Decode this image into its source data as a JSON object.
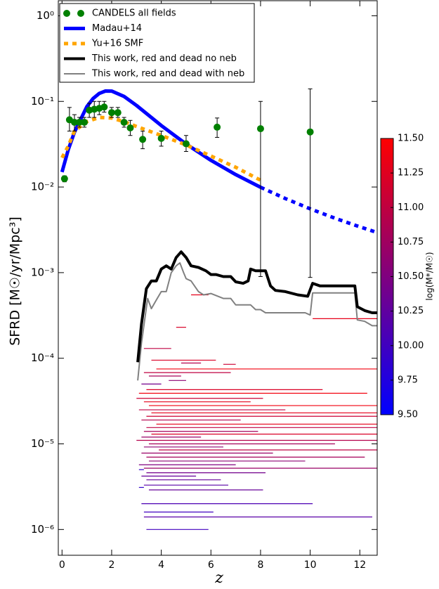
{
  "chart_data": {
    "type": "line",
    "x_label": "z",
    "y_label": "SFRD [M☉/yr/Mpc³]",
    "xlim": [
      -0.15,
      12.7
    ],
    "xticks": [
      0,
      2,
      4,
      6,
      8,
      10,
      12
    ],
    "ylim": [
      5e-07,
      1.5
    ],
    "y_scale": "log",
    "yticks": [
      {
        "value": 1,
        "label": "10⁰"
      },
      {
        "value": 0.1,
        "label": "10⁻¹"
      },
      {
        "value": 0.01,
        "label": "10⁻²"
      },
      {
        "value": 0.001,
        "label": "10⁻³"
      },
      {
        "value": 0.0001,
        "label": "10⁻⁴"
      },
      {
        "value": 1e-05,
        "label": "10⁻⁵"
      },
      {
        "value": 1e-06,
        "label": "10⁻⁶"
      }
    ],
    "legend": "upper left",
    "series": [
      {
        "name": "CANDELS all fields",
        "type": "scatter",
        "color": "#008000",
        "x": [
          0.1,
          0.3,
          0.5,
          0.7,
          0.9,
          1.1,
          1.3,
          1.5,
          1.7,
          2.0,
          2.25,
          2.5,
          2.75,
          3.25,
          4,
          5,
          6.25,
          8,
          10
        ],
        "values": [
          0.0125,
          0.061,
          0.057,
          0.057,
          0.057,
          0.079,
          0.081,
          0.083,
          0.086,
          0.074,
          0.074,
          0.057,
          0.049,
          0.036,
          0.037,
          0.032,
          0.05,
          0.048,
          0.044
        ],
        "ylow": [
          0.0115,
          0.045,
          0.045,
          0.05,
          0.05,
          0.065,
          0.065,
          0.07,
          0.075,
          0.065,
          0.065,
          0.05,
          0.04,
          0.028,
          0.03,
          0.026,
          0.038,
          0.0009,
          0.00088
        ],
        "yhigh": [
          0.0135,
          0.085,
          0.07,
          0.065,
          0.065,
          0.095,
          0.1,
          0.1,
          0.1,
          0.085,
          0.085,
          0.065,
          0.06,
          0.045,
          0.045,
          0.04,
          0.064,
          0.1,
          0.14
        ]
      },
      {
        "name": "Madau+14",
        "type": "line",
        "color": "#0000ff",
        "width": 5,
        "dashed_after": 8,
        "x": [
          0,
          0.25,
          0.5,
          1,
          1.25,
          1.5,
          1.75,
          2,
          2.5,
          3,
          4,
          5,
          6,
          7,
          8,
          9,
          10,
          11,
          12,
          12.7
        ],
        "values": [
          0.01496,
          0.02716,
          0.04375,
          0.0867,
          0.1079,
          0.124,
          0.1321,
          0.1319,
          0.1142,
          0.0897,
          0.0523,
          0.0318,
          0.0205,
          0.01397,
          0.00994,
          0.00733,
          0.00556,
          0.00432,
          0.00342,
          0.00294
        ]
      },
      {
        "name": "Yu+16 SMF",
        "type": "line",
        "color": "#ffa500",
        "width": 5,
        "dash": true,
        "x": [
          0,
          0.25,
          0.5,
          1,
          1.5,
          2,
          2.5,
          3,
          4,
          5,
          6,
          7,
          8
        ],
        "values": [
          0.022,
          0.03,
          0.045,
          0.058,
          0.065,
          0.064,
          0.058,
          0.051,
          0.04,
          0.031,
          0.023,
          0.017,
          0.012
        ]
      },
      {
        "name": "This work, red and dead no neb",
        "type": "line",
        "color": "#000000",
        "width": 4,
        "x": [
          3.05,
          3.2,
          3.4,
          3.6,
          3.8,
          4.0,
          4.2,
          4.4,
          4.6,
          4.8,
          5.0,
          5.2,
          5.5,
          5.8,
          6.0,
          6.2,
          6.5,
          6.8,
          7.0,
          7.3,
          7.5,
          7.6,
          7.8,
          8.2,
          8.4,
          8.6,
          9.0,
          9.5,
          9.9,
          10.1,
          10.4,
          11.8,
          11.9,
          12.2,
          12.5,
          12.7
        ],
        "values": [
          9e-05,
          0.00025,
          0.00065,
          0.0008,
          0.0008,
          0.0011,
          0.0012,
          0.0011,
          0.0015,
          0.00175,
          0.0015,
          0.0012,
          0.00115,
          0.00105,
          0.00095,
          0.00095,
          0.0009,
          0.0009,
          0.00078,
          0.00075,
          0.0008,
          0.0011,
          0.00105,
          0.00105,
          0.0007,
          0.00062,
          0.0006,
          0.00055,
          0.00053,
          0.00075,
          0.0007,
          0.0007,
          0.0004,
          0.00036,
          0.00034,
          0.00034
        ]
      },
      {
        "name": "This work, red and dead with neb",
        "type": "line",
        "color": "#808080",
        "width": 2,
        "x": [
          3.05,
          3.2,
          3.45,
          3.6,
          3.8,
          4.0,
          4.2,
          4.4,
          4.6,
          4.75,
          4.9,
          5.0,
          5.2,
          5.5,
          5.7,
          6.0,
          6.5,
          6.8,
          7.0,
          7.6,
          7.8,
          8.0,
          8.2,
          9.8,
          10.0,
          10.1,
          11.8,
          11.9,
          12.2,
          12.5,
          12.7
        ],
        "values": [
          5.5e-05,
          0.00015,
          0.0005,
          0.00038,
          0.00048,
          0.0006,
          0.0006,
          0.001,
          0.0012,
          0.0013,
          0.001,
          0.00085,
          0.0008,
          0.0006,
          0.00055,
          0.00057,
          0.0005,
          0.0005,
          0.00042,
          0.00042,
          0.00037,
          0.00037,
          0.00034,
          0.00034,
          0.00032,
          0.00058,
          0.00058,
          0.00028,
          0.00027,
          0.00024,
          0.00024
        ]
      }
    ],
    "segments": {
      "x_start": [
        5.2,
        10.1,
        4.6,
        3.3,
        3.6,
        4.8,
        6.5,
        3.8,
        3.3,
        3.5,
        4.3,
        3.2,
        3.4,
        3.1,
        3.0,
        3.3,
        3.5,
        3.1,
        3.6,
        3.4,
        3.2,
        3.8,
        3.4,
        3.3,
        3.6,
        3.2,
        3.0,
        3.5,
        3.3,
        3.9,
        3.2,
        3.4,
        3.5,
        3.1,
        3.3,
        3.4,
        3.2,
        3.4,
        3.3,
        3.5,
        3.2,
        3.3,
        3.3,
        3.4,
        3.1,
        3.1
      ],
      "x_end": [
        5.9,
        12.7,
        5.0,
        4.4,
        6.2,
        5.6,
        7.0,
        12.7,
        6.8,
        4.8,
        5.0,
        4.0,
        10.5,
        12.3,
        8.1,
        7.6,
        12.7,
        9.0,
        12.7,
        12.7,
        7.2,
        12.7,
        12.7,
        7.9,
        12.7,
        5.6,
        12.7,
        11.0,
        6.5,
        12.7,
        8.5,
        12.2,
        9.8,
        7.0,
        12.7,
        8.2,
        5.4,
        6.4,
        6.7,
        8.1,
        10.1,
        6.1,
        12.5,
        5.9,
        3.3,
        3.3
      ],
      "values": [
        0.00055,
        0.00029,
        0.00023,
        0.00013,
        9.5e-05,
        8.8e-05,
        8.5e-05,
        7.5e-05,
        6.8e-05,
        6.2e-05,
        5.5e-05,
        5e-05,
        4.3e-05,
        3.9e-05,
        3.4e-05,
        3.1e-05,
        2.8e-05,
        2.5e-05,
        2.3e-05,
        2.1e-05,
        1.9e-05,
        1.7e-05,
        1.55e-05,
        1.4e-05,
        1.3e-05,
        1.2e-05,
        1.1e-05,
        1e-05,
        9.2e-06,
        8.5e-06,
        7.8e-06,
        7e-06,
        6.3e-06,
        5.7e-06,
        5.2e-06,
        4.6e-06,
        4.2e-06,
        3.8e-06,
        3.3e-06,
        2.9e-06,
        2e-06,
        1.6e-06,
        1.4e-06,
        1e-06,
        5e-06,
        3.1e-06
      ],
      "mass": [
        11.3,
        11.3,
        11.2,
        11.0,
        11.2,
        10.9,
        11.1,
        11.4,
        11.0,
        10.8,
        10.6,
        10.4,
        11.2,
        11.4,
        11.1,
        11.3,
        11.4,
        11.0,
        11.3,
        11.1,
        10.9,
        11.3,
        11.0,
        10.8,
        11.2,
        10.7,
        10.9,
        10.8,
        10.6,
        11.0,
        10.7,
        10.8,
        10.6,
        10.5,
        10.7,
        10.4,
        10.3,
        10.3,
        10.2,
        10.3,
        10.1,
        10.0,
        10.2,
        10.0,
        9.9,
        9.9
      ]
    },
    "colorbar": {
      "label": "log(M*/M☉)",
      "colormap": [
        "#0000ff",
        "#ff0000"
      ],
      "clim": [
        9.5,
        11.5
      ],
      "ticks": [
        {
          "value": 9.5,
          "label": "9.50"
        },
        9.75,
        {
          "value": 10,
          "label": "10.00"
        },
        10.25,
        {
          "value": 10.5,
          "label": "10.50"
        },
        10.75,
        {
          "value": 11,
          "label": "11.00"
        },
        11.25,
        {
          "value": 11.5,
          "label": "11.50"
        }
      ]
    }
  }
}
